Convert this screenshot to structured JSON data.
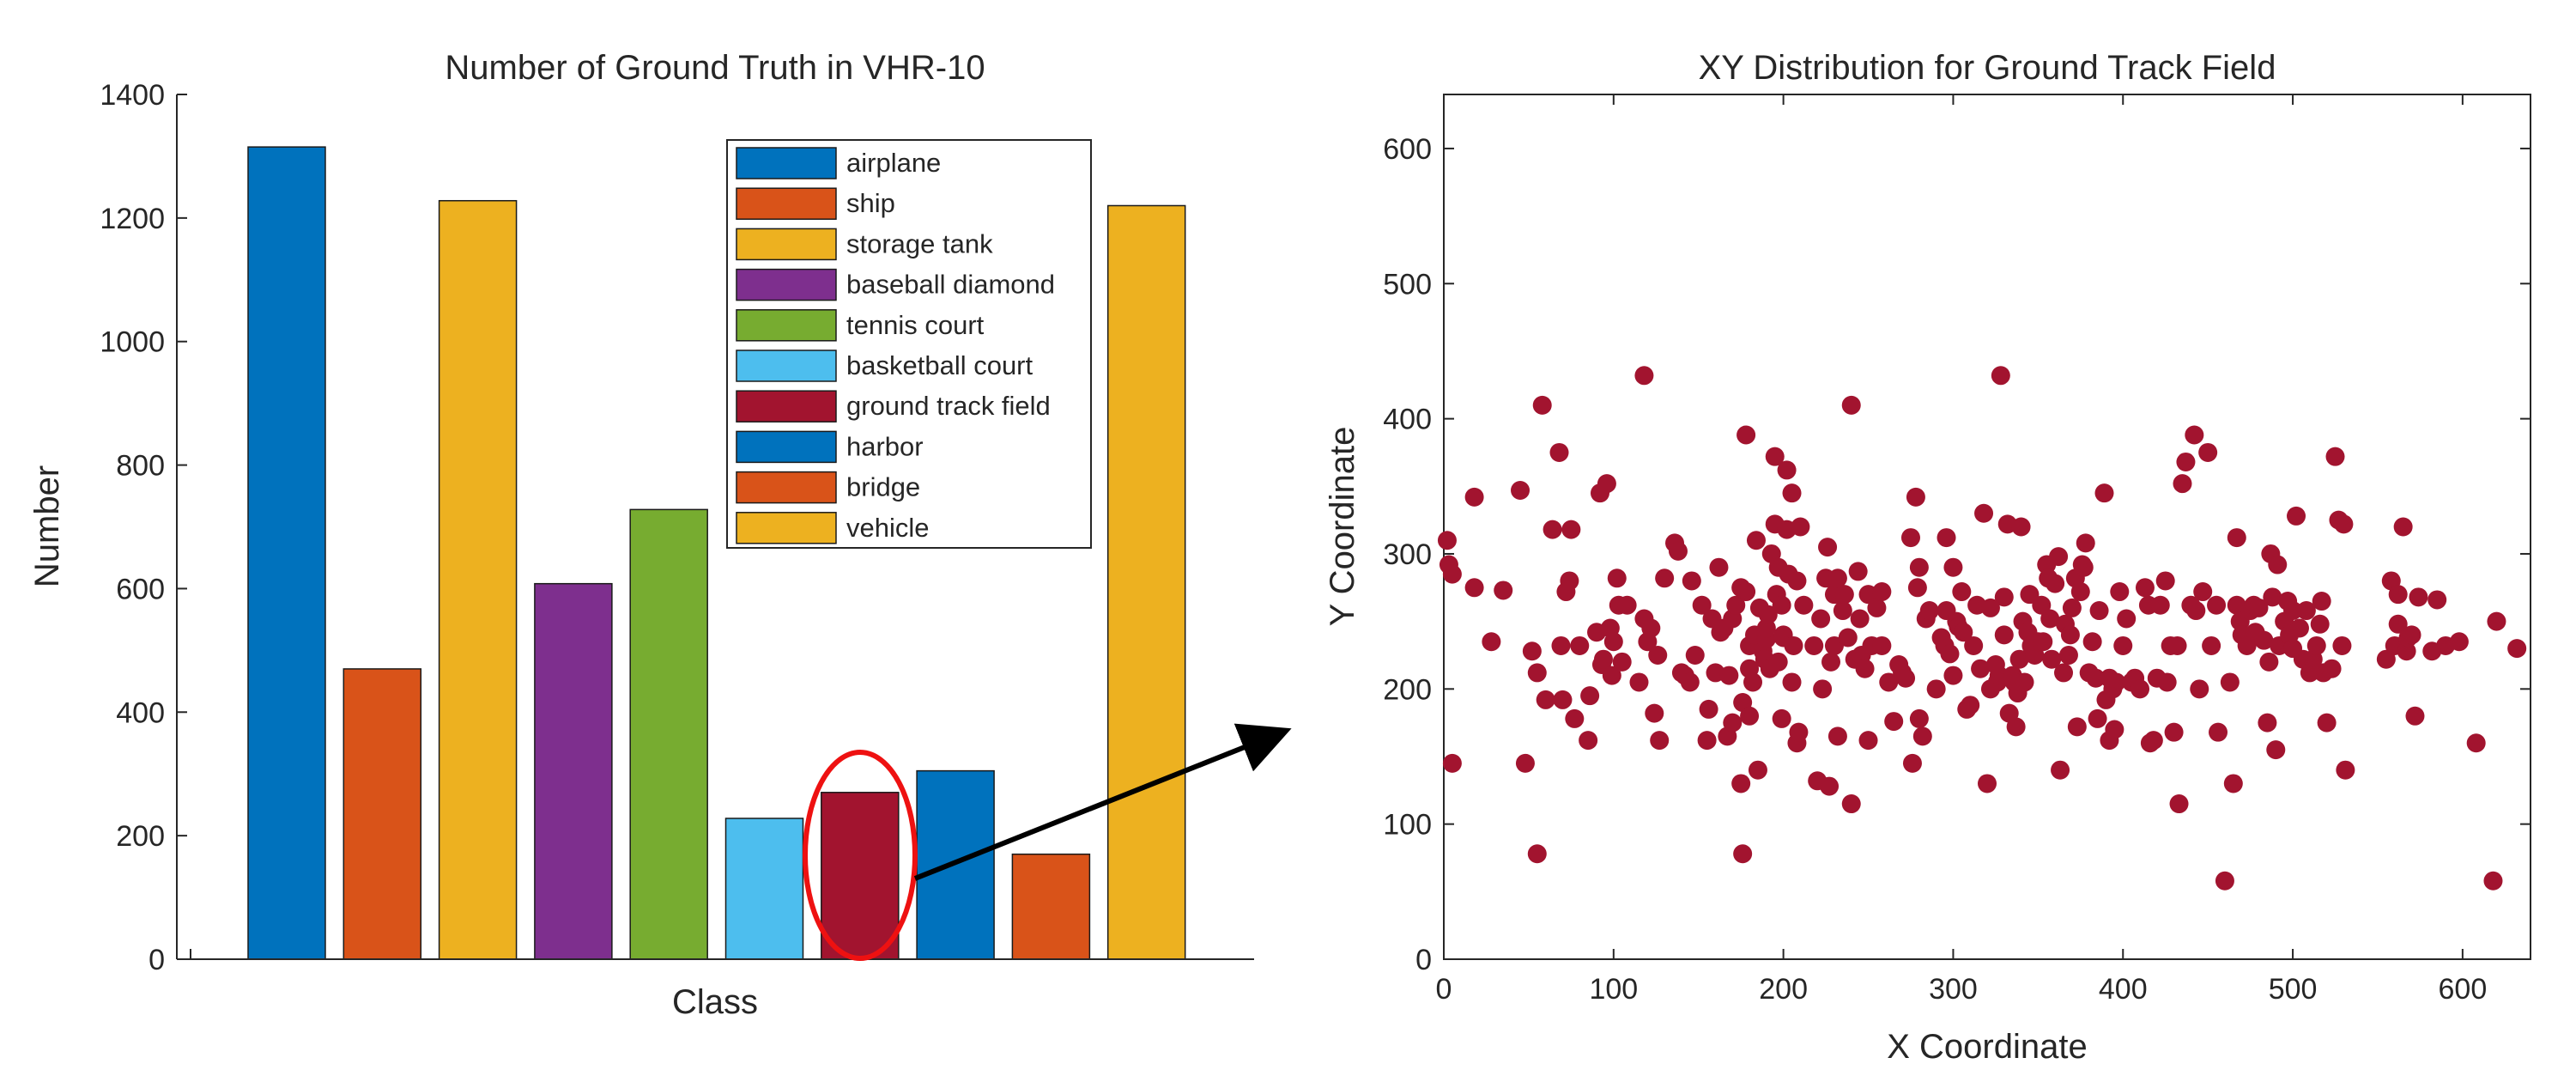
{
  "chart_data": [
    {
      "type": "bar",
      "title": "Number of Ground Truth in VHR-10",
      "xlabel": "Class",
      "ylabel": "Number",
      "ylim": [
        0,
        1400
      ],
      "yticks": [
        "0",
        "200",
        "400",
        "600",
        "800",
        "1000",
        "1200",
        "1400"
      ],
      "grid": false,
      "legend_position": "top-right",
      "categories": [
        "airplane",
        "ship",
        "storage tank",
        "baseball diamond",
        "tennis court",
        "basketball court",
        "ground track field",
        "harbor",
        "bridge",
        "vehicle"
      ],
      "values": [
        1315,
        470,
        1228,
        608,
        728,
        228,
        270,
        305,
        170,
        1220
      ],
      "colors": [
        "#0072BD",
        "#D95319",
        "#EDB120",
        "#7E2F8E",
        "#77AC30",
        "#4DBEEE",
        "#A2142F",
        "#0072BD",
        "#D95319",
        "#EDB120"
      ],
      "highlight": {
        "category": "ground track field",
        "color": "#ee1111"
      }
    },
    {
      "type": "scatter",
      "title": "XY Distribution for Ground Track Field",
      "xlabel": "X Coordinate",
      "ylabel": "Y Coordinate",
      "xlim": [
        0,
        640
      ],
      "ylim": [
        0,
        640
      ],
      "xticks": [
        "0",
        "100",
        "200",
        "300",
        "400",
        "500",
        "600"
      ],
      "yticks": [
        "0",
        "100",
        "200",
        "300",
        "400",
        "500",
        "600"
      ],
      "grid": false,
      "color": "#A2142F",
      "points": [
        [
          2,
          310
        ],
        [
          3,
          292
        ],
        [
          5,
          285
        ],
        [
          5,
          145
        ],
        [
          18,
          342
        ],
        [
          18,
          275
        ],
        [
          28,
          235
        ],
        [
          35,
          273
        ],
        [
          45,
          347
        ],
        [
          48,
          145
        ],
        [
          52,
          228
        ],
        [
          55,
          212
        ],
        [
          55,
          78
        ],
        [
          58,
          410
        ],
        [
          60,
          192
        ],
        [
          64,
          318
        ],
        [
          68,
          375
        ],
        [
          69,
          232
        ],
        [
          70,
          192
        ],
        [
          72,
          272
        ],
        [
          74,
          280
        ],
        [
          75,
          318
        ],
        [
          77,
          178
        ],
        [
          80,
          232
        ],
        [
          85,
          162
        ],
        [
          86,
          195
        ],
        [
          90,
          242
        ],
        [
          92,
          345
        ],
        [
          93,
          218
        ],
        [
          94,
          222
        ],
        [
          96,
          352
        ],
        [
          98,
          245
        ],
        [
          99,
          210
        ],
        [
          100,
          235
        ],
        [
          102,
          282
        ],
        [
          103,
          262
        ],
        [
          105,
          220
        ],
        [
          108,
          262
        ],
        [
          115,
          205
        ],
        [
          118,
          432
        ],
        [
          118,
          252
        ],
        [
          120,
          235
        ],
        [
          122,
          245
        ],
        [
          124,
          182
        ],
        [
          126,
          225
        ],
        [
          127,
          162
        ],
        [
          130,
          282
        ],
        [
          136,
          308
        ],
        [
          138,
          302
        ],
        [
          140,
          212
        ],
        [
          142,
          210
        ],
        [
          145,
          205
        ],
        [
          146,
          280
        ],
        [
          148,
          225
        ],
        [
          152,
          262
        ],
        [
          155,
          162
        ],
        [
          156,
          185
        ],
        [
          158,
          252
        ],
        [
          160,
          212
        ],
        [
          162,
          290
        ],
        [
          163,
          242
        ],
        [
          165,
          245
        ],
        [
          167,
          165
        ],
        [
          168,
          210
        ],
        [
          170,
          252
        ],
        [
          170,
          175
        ],
        [
          172,
          262
        ],
        [
          175,
          275
        ],
        [
          176,
          190
        ],
        [
          175,
          130
        ],
        [
          176,
          78
        ],
        [
          178,
          388
        ],
        [
          178,
          272
        ],
        [
          180,
          232
        ],
        [
          180,
          215
        ],
        [
          180,
          180
        ],
        [
          182,
          205
        ],
        [
          183,
          240
        ],
        [
          184,
          310
        ],
        [
          185,
          140
        ],
        [
          186,
          260
        ],
        [
          188,
          228
        ],
        [
          189,
          222
        ],
        [
          190,
          237
        ],
        [
          190,
          245
        ],
        [
          191,
          255
        ],
        [
          192,
          215
        ],
        [
          193,
          300
        ],
        [
          195,
          372
        ],
        [
          195,
          322
        ],
        [
          196,
          270
        ],
        [
          197,
          220
        ],
        [
          197,
          290
        ],
        [
          199,
          178
        ],
        [
          199,
          262
        ],
        [
          200,
          240
        ],
        [
          200,
          238
        ],
        [
          202,
          362
        ],
        [
          202,
          318
        ],
        [
          203,
          285
        ],
        [
          205,
          345
        ],
        [
          205,
          205
        ],
        [
          206,
          232
        ],
        [
          208,
          280
        ],
        [
          208,
          160
        ],
        [
          209,
          168
        ],
        [
          210,
          320
        ],
        [
          212,
          262
        ],
        [
          218,
          232
        ],
        [
          220,
          132
        ],
        [
          222,
          252
        ],
        [
          223,
          200
        ],
        [
          225,
          282
        ],
        [
          226,
          305
        ],
        [
          227,
          128
        ],
        [
          228,
          220
        ],
        [
          230,
          232
        ],
        [
          230,
          270
        ],
        [
          232,
          282
        ],
        [
          232,
          165
        ],
        [
          235,
          258
        ],
        [
          236,
          270
        ],
        [
          238,
          238
        ],
        [
          240,
          410
        ],
        [
          240,
          115
        ],
        [
          242,
          222
        ],
        [
          244,
          287
        ],
        [
          245,
          252
        ],
        [
          246,
          225
        ],
        [
          248,
          215
        ],
        [
          250,
          270
        ],
        [
          250,
          162
        ],
        [
          252,
          232
        ],
        [
          255,
          260
        ],
        [
          258,
          272
        ],
        [
          258,
          232
        ],
        [
          262,
          205
        ],
        [
          265,
          176
        ],
        [
          268,
          218
        ],
        [
          270,
          212
        ],
        [
          272,
          208
        ],
        [
          275,
          312
        ],
        [
          276,
          145
        ],
        [
          278,
          342
        ],
        [
          279,
          275
        ],
        [
          280,
          178
        ],
        [
          280,
          290
        ],
        [
          282,
          165
        ],
        [
          284,
          252
        ],
        [
          286,
          258
        ],
        [
          290,
          200
        ],
        [
          293,
          238
        ],
        [
          295,
          232
        ],
        [
          296,
          312
        ],
        [
          296,
          258
        ],
        [
          298,
          226
        ],
        [
          300,
          210
        ],
        [
          300,
          290
        ],
        [
          302,
          250
        ],
        [
          303,
          246
        ],
        [
          305,
          272
        ],
        [
          306,
          242
        ],
        [
          308,
          185
        ],
        [
          310,
          188
        ],
        [
          312,
          232
        ],
        [
          314,
          262
        ],
        [
          316,
          215
        ],
        [
          318,
          330
        ],
        [
          320,
          130
        ],
        [
          322,
          200
        ],
        [
          322,
          260
        ],
        [
          325,
          218
        ],
        [
          326,
          205
        ],
        [
          327,
          210
        ],
        [
          328,
          432
        ],
        [
          330,
          240
        ],
        [
          330,
          268
        ],
        [
          332,
          322
        ],
        [
          333,
          182
        ],
        [
          335,
          210
        ],
        [
          336,
          205
        ],
        [
          337,
          172
        ],
        [
          338,
          197
        ],
        [
          339,
          222
        ],
        [
          340,
          320
        ],
        [
          341,
          250
        ],
        [
          342,
          205
        ],
        [
          344,
          242
        ],
        [
          345,
          270
        ],
        [
          346,
          232
        ],
        [
          348,
          225
        ],
        [
          350,
          235
        ],
        [
          352,
          262
        ],
        [
          353,
          235
        ],
        [
          355,
          292
        ],
        [
          356,
          282
        ],
        [
          357,
          252
        ],
        [
          358,
          222
        ],
        [
          360,
          278
        ],
        [
          362,
          298
        ],
        [
          363,
          140
        ],
        [
          365,
          212
        ],
        [
          366,
          248
        ],
        [
          368,
          225
        ],
        [
          369,
          240
        ],
        [
          370,
          260
        ],
        [
          372,
          282
        ],
        [
          373,
          172
        ],
        [
          375,
          272
        ],
        [
          376,
          292
        ],
        [
          377,
          290
        ],
        [
          378,
          308
        ],
        [
          380,
          212
        ],
        [
          382,
          235
        ],
        [
          384,
          208
        ],
        [
          385,
          178
        ],
        [
          386,
          258
        ],
        [
          389,
          345
        ],
        [
          390,
          192
        ],
        [
          392,
          208
        ],
        [
          392,
          162
        ],
        [
          394,
          200
        ],
        [
          395,
          170
        ],
        [
          396,
          205
        ],
        [
          398,
          272
        ],
        [
          400,
          232
        ],
        [
          402,
          252
        ],
        [
          405,
          205
        ],
        [
          407,
          208
        ],
        [
          410,
          200
        ],
        [
          413,
          275
        ],
        [
          415,
          262
        ],
        [
          416,
          160
        ],
        [
          418,
          162
        ],
        [
          420,
          208
        ],
        [
          422,
          262
        ],
        [
          425,
          280
        ],
        [
          426,
          205
        ],
        [
          428,
          232
        ],
        [
          430,
          168
        ],
        [
          432,
          232
        ],
        [
          433,
          115
        ],
        [
          435,
          352
        ],
        [
          437,
          368
        ],
        [
          440,
          262
        ],
        [
          442,
          388
        ],
        [
          443,
          258
        ],
        [
          445,
          200
        ],
        [
          447,
          272
        ],
        [
          450,
          375
        ],
        [
          452,
          232
        ],
        [
          455,
          262
        ],
        [
          456,
          168
        ],
        [
          460,
          58
        ],
        [
          463,
          205
        ],
        [
          465,
          130
        ],
        [
          467,
          262
        ],
        [
          467,
          312
        ],
        [
          469,
          250
        ],
        [
          470,
          240
        ],
        [
          473,
          232
        ],
        [
          475,
          258
        ],
        [
          477,
          262
        ],
        [
          478,
          242
        ],
        [
          480,
          260
        ],
        [
          483,
          236
        ],
        [
          485,
          175
        ],
        [
          486,
          220
        ],
        [
          487,
          300
        ],
        [
          488,
          268
        ],
        [
          490,
          155
        ],
        [
          491,
          292
        ],
        [
          492,
          232
        ],
        [
          495,
          250
        ],
        [
          497,
          265
        ],
        [
          498,
          240
        ],
        [
          500,
          230
        ],
        [
          500,
          258
        ],
        [
          502,
          328
        ],
        [
          504,
          245
        ],
        [
          506,
          222
        ],
        [
          508,
          258
        ],
        [
          510,
          212
        ],
        [
          512,
          222
        ],
        [
          514,
          232
        ],
        [
          516,
          248
        ],
        [
          517,
          265
        ],
        [
          518,
          212
        ],
        [
          520,
          175
        ],
        [
          523,
          215
        ],
        [
          525,
          372
        ],
        [
          527,
          325
        ],
        [
          529,
          232
        ],
        [
          530,
          322
        ],
        [
          531,
          140
        ],
        [
          555,
          222
        ],
        [
          558,
          280
        ],
        [
          560,
          232
        ],
        [
          562,
          248
        ],
        [
          562,
          270
        ],
        [
          565,
          320
        ],
        [
          567,
          228
        ],
        [
          568,
          238
        ],
        [
          570,
          240
        ],
        [
          572,
          180
        ],
        [
          574,
          268
        ],
        [
          582,
          228
        ],
        [
          585,
          266
        ],
        [
          590,
          232
        ],
        [
          598,
          235
        ],
        [
          608,
          160
        ],
        [
          618,
          58
        ],
        [
          620,
          250
        ],
        [
          632,
          230
        ]
      ]
    }
  ]
}
